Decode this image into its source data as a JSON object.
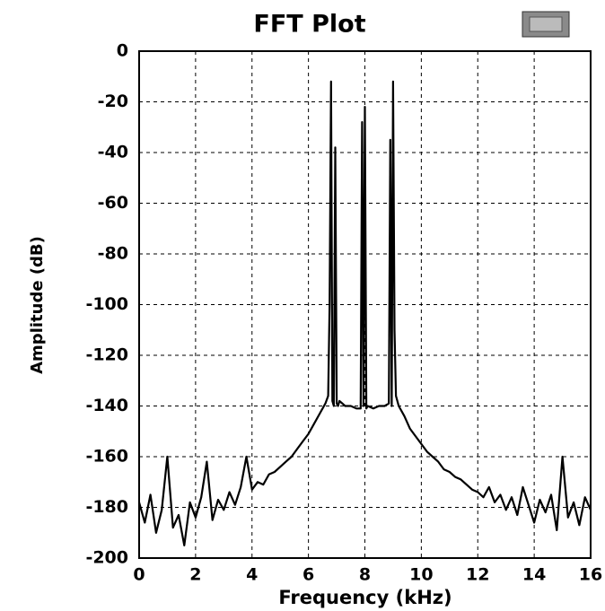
{
  "chart_data": {
    "type": "line",
    "title": "FFT Plot",
    "x_label": "Frequency (kHz)",
    "y_label": "Amplitude (dB)",
    "xlim": [
      0,
      16
    ],
    "ylim": [
      -200,
      0
    ],
    "xticks": [
      0,
      2,
      4,
      6,
      8,
      10,
      12,
      14,
      16
    ],
    "yticks": [
      0,
      -20,
      -40,
      -60,
      -80,
      -100,
      -120,
      -140,
      -160,
      -180,
      -200
    ],
    "grid": true,
    "series": [
      {
        "color": "#000000",
        "x": [
          0,
          0.2,
          0.4,
          0.6,
          0.8,
          1.0,
          1.2,
          1.4,
          1.6,
          1.8,
          2.0,
          2.2,
          2.4,
          2.6,
          2.8,
          3.0,
          3.2,
          3.4,
          3.6,
          3.8,
          4.0,
          4.2,
          4.4,
          4.6,
          4.8,
          5.0,
          5.2,
          5.4,
          5.6,
          5.8,
          6.0,
          6.2,
          6.4,
          6.6,
          6.7,
          6.75,
          6.8,
          6.85,
          6.9,
          6.95,
          7.0,
          7.05,
          7.1,
          7.3,
          7.5,
          7.7,
          7.85,
          7.9,
          7.95,
          8.0,
          8.05,
          8.1,
          8.3,
          8.5,
          8.7,
          8.85,
          8.9,
          8.95,
          9.0,
          9.05,
          9.1,
          9.2,
          9.4,
          9.6,
          9.8,
          10.0,
          10.2,
          10.4,
          10.6,
          10.8,
          11.0,
          11.2,
          11.4,
          11.6,
          11.8,
          12.0,
          12.2,
          12.4,
          12.6,
          12.8,
          13.0,
          13.2,
          13.4,
          13.6,
          13.8,
          14.0,
          14.2,
          14.4,
          14.6,
          14.8,
          15.0,
          15.2,
          15.4,
          15.6,
          15.8,
          16.0
        ],
        "values": [
          -178,
          -186,
          -175,
          -190,
          -181,
          -160,
          -188,
          -183,
          -195,
          -178,
          -184,
          -176,
          -162,
          -185,
          -177,
          -181,
          -174,
          -179,
          -172,
          -160,
          -173,
          -170,
          -171,
          -167,
          -166,
          -164,
          -162,
          -160,
          -157,
          -154,
          -151,
          -147,
          -143,
          -139,
          -136,
          -100,
          -12,
          -138,
          -140,
          -38,
          -139,
          -140,
          -138,
          -140,
          -140,
          -141,
          -141,
          -28,
          -140,
          -22,
          -141,
          -140,
          -141,
          -140,
          -140,
          -139,
          -35,
          -140,
          -12,
          -110,
          -136,
          -140,
          -144,
          -149,
          -152,
          -155,
          -158,
          -160,
          -162,
          -165,
          -166,
          -168,
          -169,
          -171,
          -173,
          -174,
          -176,
          -172,
          -178,
          -175,
          -181,
          -176,
          -183,
          -172,
          -179,
          -186,
          -177,
          -182,
          -175,
          -189,
          -160,
          -184,
          -178,
          -187,
          -176,
          -181
        ]
      }
    ]
  }
}
